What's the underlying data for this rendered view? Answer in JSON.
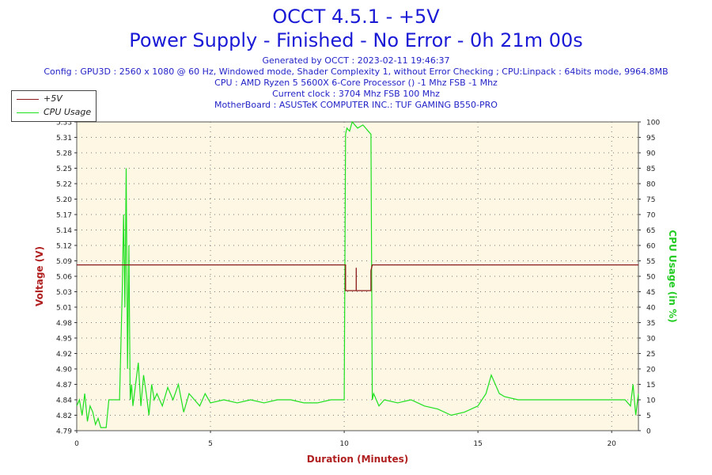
{
  "header": {
    "title_line1": "OCCT 4.5.1 - +5V",
    "title_line2": "Power Supply - Finished - No Error - 0h 21m 00s",
    "generated": "Generated by OCCT : 2023-02-11 19:46:37",
    "config": "Config : GPU3D : 2560 x 1080 @ 60 Hz, Windowed mode, Shader Complexity 1, without Error Checking ; CPU:Linpack : 64bits mode, 9964.8MB",
    "cpu": "CPU : AMD Ryzen 5 5600X 6-Core Processor () -1 Mhz FSB -1 Mhz",
    "clock": "Current clock : 3704 Mhz FSB 100 Mhz",
    "motherboard": "MotherBoard : ASUSTeK COMPUTER INC.: TUF GAMING B550-PRO"
  },
  "legend": [
    {
      "label": "+5V",
      "color": "#8b1a1a"
    },
    {
      "label": "CPU Usage",
      "color": "#1fe01f"
    }
  ],
  "chart_data": {
    "type": "line",
    "xlabel": "Duration (Minutes)",
    "ylabel_left": "Voltage (V)",
    "ylabel_right": "CPU Usage (in %)",
    "xlim": [
      0,
      21
    ],
    "ylim_left": [
      4.79,
      5.33
    ],
    "ylim_right": [
      0,
      100
    ],
    "x_ticks": [
      "0",
      "5",
      "10",
      "15",
      "20"
    ],
    "y_left_ticks": [
      "4.79",
      "4.82",
      "4.84",
      "4.87",
      "4.90",
      "4.92",
      "4.95",
      "4.98",
      "5.01",
      "5.03",
      "5.06",
      "5.09",
      "5.12",
      "5.14",
      "5.17",
      "5.20",
      "5.22",
      "5.25",
      "5.28",
      "5.31",
      "5.33"
    ],
    "y_right_ticks": [
      "0",
      "5",
      "10",
      "15",
      "20",
      "25",
      "30",
      "35",
      "40",
      "45",
      "50",
      "55",
      "60",
      "65",
      "70",
      "75",
      "80",
      "85",
      "90",
      "95",
      "100"
    ],
    "grid": true,
    "colors": {
      "voltage": "#8b1a1a",
      "cpu": "#1fe01f",
      "plot_bg": "#fdf7e4",
      "axis_label": "#b02020",
      "axis_label_right": "#22cc22"
    },
    "series": [
      {
        "name": "+5V",
        "x": [
          0,
          10.05,
          10.05,
          10.1,
          10.1,
          10.45,
          10.45,
          10.45,
          11.0,
          11.0,
          11.05,
          11.05,
          21
        ],
        "values": [
          5.08,
          5.08,
          5.035,
          5.035,
          5.035,
          5.035,
          5.075,
          5.035,
          5.035,
          5.07,
          5.08,
          5.08,
          5.08
        ]
      },
      {
        "name": "CPU Usage",
        "x": [
          0,
          0.1,
          0.2,
          0.3,
          0.4,
          0.5,
          0.6,
          0.7,
          0.8,
          0.9,
          1.0,
          1.1,
          1.2,
          1.3,
          1.4,
          1.5,
          1.6,
          1.7,
          1.75,
          1.8,
          1.85,
          1.9,
          1.95,
          2.0,
          2.05,
          2.1,
          2.2,
          2.3,
          2.4,
          2.5,
          2.6,
          2.7,
          2.8,
          2.9,
          3.0,
          3.2,
          3.4,
          3.6,
          3.8,
          4.0,
          4.2,
          4.4,
          4.6,
          4.8,
          5.0,
          5.5,
          6.0,
          6.5,
          7.0,
          7.5,
          8.0,
          8.5,
          9.0,
          9.5,
          10.0,
          10.05,
          10.1,
          10.2,
          10.3,
          10.5,
          10.7,
          10.9,
          11.0,
          11.05,
          11.1,
          11.3,
          11.5,
          12.0,
          12.5,
          13.0,
          13.5,
          14.0,
          14.5,
          15.0,
          15.3,
          15.5,
          15.8,
          16.0,
          16.5,
          17.0,
          17.5,
          18.0,
          18.5,
          19.0,
          19.5,
          20.0,
          20.3,
          20.5,
          20.7,
          20.8,
          20.9,
          21.0
        ],
        "values": [
          8,
          10,
          5,
          12,
          3,
          8,
          6,
          2,
          4,
          1,
          1,
          1,
          10,
          10,
          10,
          10,
          10,
          45,
          70,
          40,
          85,
          20,
          60,
          10,
          15,
          8,
          15,
          22,
          8,
          18,
          12,
          5,
          15,
          10,
          12,
          8,
          14,
          10,
          15,
          6,
          12,
          10,
          8,
          12,
          9,
          10,
          9,
          10,
          9,
          10,
          10,
          9,
          9,
          10,
          10,
          96,
          98,
          97,
          100,
          98,
          99,
          97,
          96,
          10,
          12,
          8,
          10,
          9,
          10,
          8,
          7,
          5,
          6,
          8,
          12,
          18,
          12,
          11,
          10,
          10,
          10,
          10,
          10,
          10,
          10,
          10,
          10,
          10,
          8,
          15,
          5,
          12
        ]
      }
    ]
  }
}
